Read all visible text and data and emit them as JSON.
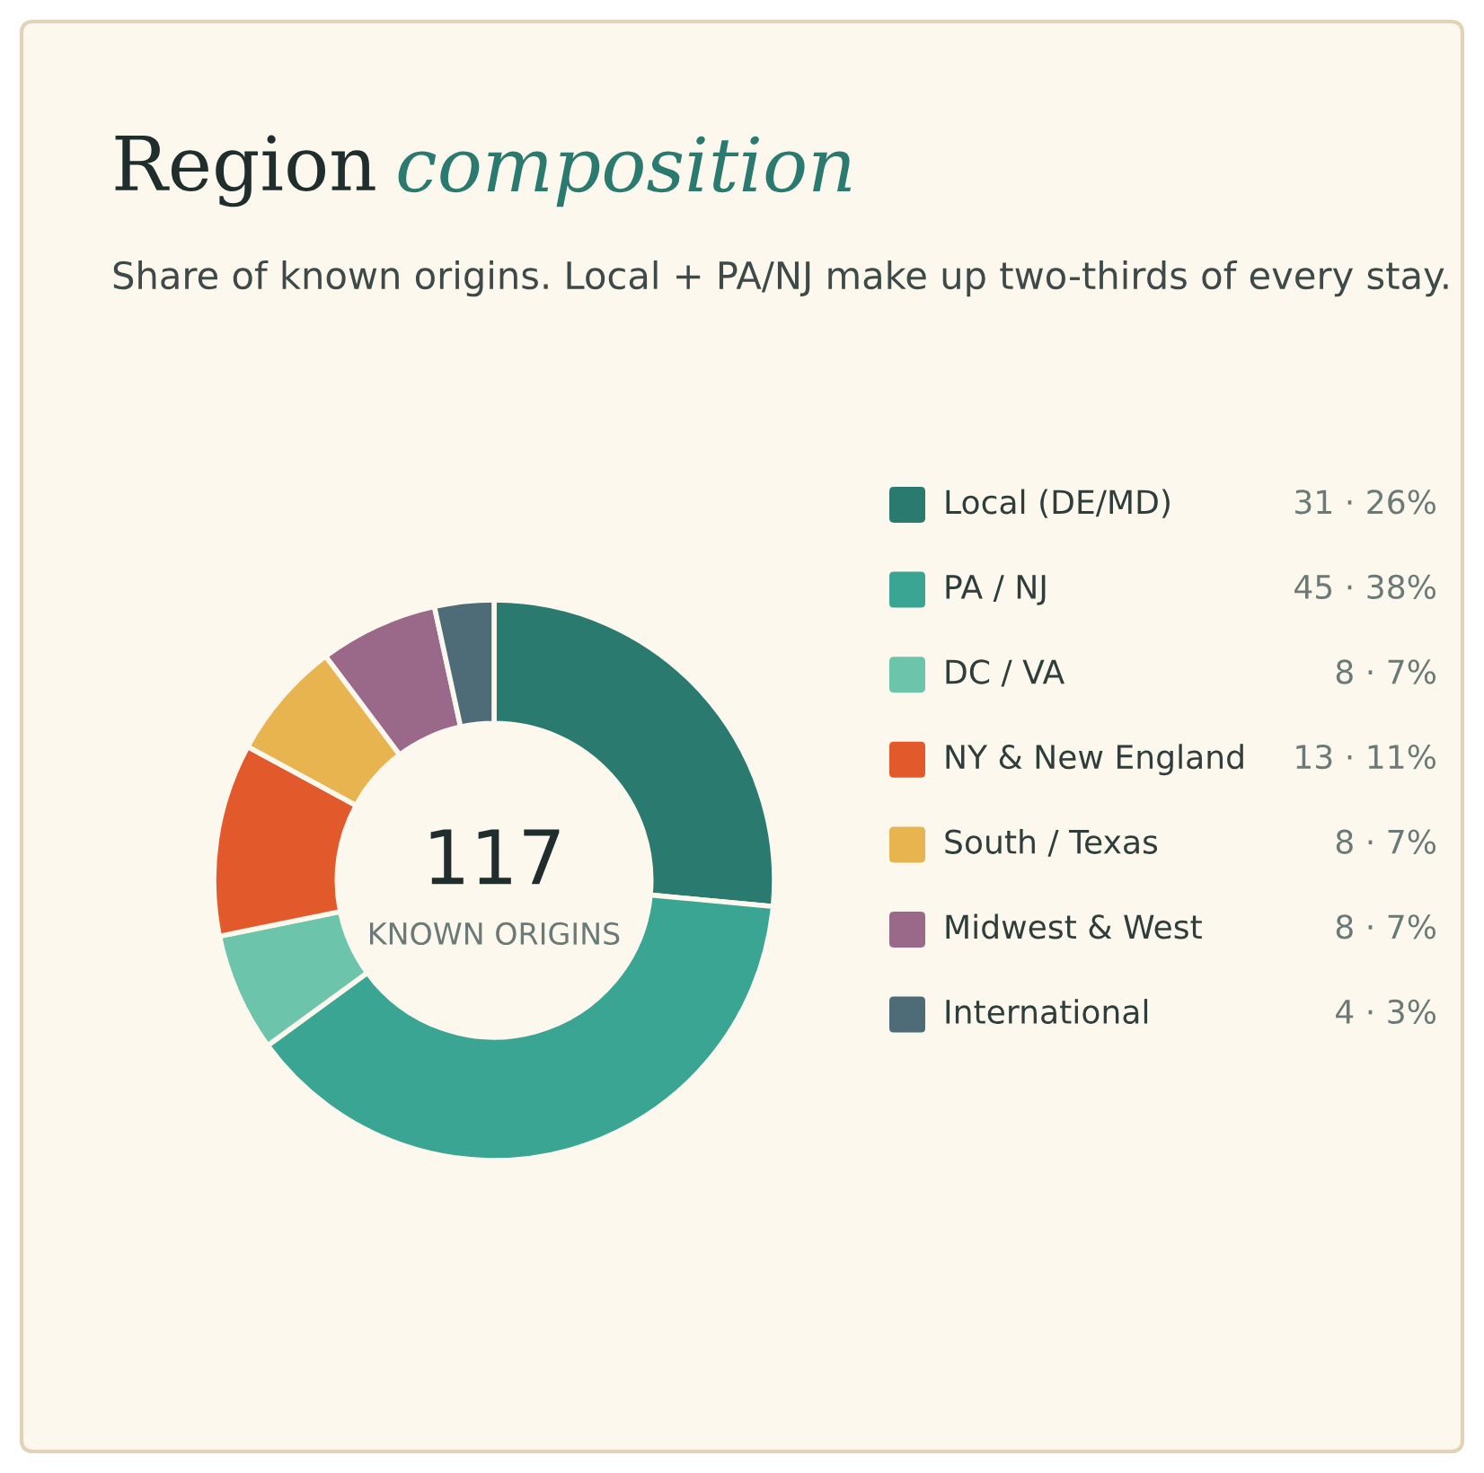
{
  "chart_data": {
    "type": "donut",
    "title": "Region composition",
    "subtitle": "Share of known origins. Local + PA/NJ make up two-thirds of every stay.",
    "categories": [
      "Local (DE/MD)",
      "PA / NJ",
      "DC / VA",
      "NY & New England",
      "South / Texas",
      "Midwest & West",
      "International"
    ],
    "values": [
      31,
      45,
      8,
      13,
      8,
      8,
      4
    ],
    "value_labels": [
      "31 · 26%",
      "45 · 38%",
      "8 · 7%",
      "13 · 11%",
      "8 · 7%",
      "8 · 7%",
      "4 · 3%"
    ],
    "colors": [
      "#2a7a6f",
      "#3aa592",
      "#6cc4ab",
      "#e25a2c",
      "#e8b44f",
      "#9a6888",
      "#4e6b78"
    ],
    "annotations": [
      "117",
      "KNOWN ORIGINS"
    ],
    "legend": "right"
  }
}
